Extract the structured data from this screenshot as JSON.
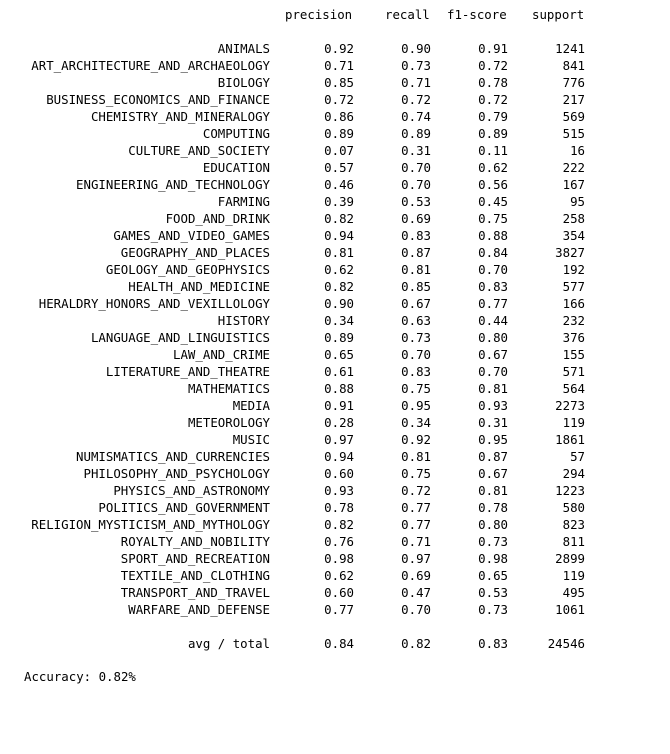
{
  "header": {
    "precision": "precision",
    "recall": "recall",
    "f1_score": "f1-score",
    "support": "support"
  },
  "rows": [
    {
      "label": "ANIMALS",
      "precision": "0.92",
      "recall": "0.90",
      "f1": "0.91",
      "support": "1241"
    },
    {
      "label": "ART_ARCHITECTURE_AND_ARCHAEOLOGY",
      "precision": "0.71",
      "recall": "0.73",
      "f1": "0.72",
      "support": "841"
    },
    {
      "label": "BIOLOGY",
      "precision": "0.85",
      "recall": "0.71",
      "f1": "0.78",
      "support": "776"
    },
    {
      "label": "BUSINESS_ECONOMICS_AND_FINANCE",
      "precision": "0.72",
      "recall": "0.72",
      "f1": "0.72",
      "support": "217"
    },
    {
      "label": "CHEMISTRY_AND_MINERALOGY",
      "precision": "0.86",
      "recall": "0.74",
      "f1": "0.79",
      "support": "569"
    },
    {
      "label": "COMPUTING",
      "precision": "0.89",
      "recall": "0.89",
      "f1": "0.89",
      "support": "515"
    },
    {
      "label": "CULTURE_AND_SOCIETY",
      "precision": "0.07",
      "recall": "0.31",
      "f1": "0.11",
      "support": "16"
    },
    {
      "label": "EDUCATION",
      "precision": "0.57",
      "recall": "0.70",
      "f1": "0.62",
      "support": "222"
    },
    {
      "label": "ENGINEERING_AND_TECHNOLOGY",
      "precision": "0.46",
      "recall": "0.70",
      "f1": "0.56",
      "support": "167"
    },
    {
      "label": "FARMING",
      "precision": "0.39",
      "recall": "0.53",
      "f1": "0.45",
      "support": "95"
    },
    {
      "label": "FOOD_AND_DRINK",
      "precision": "0.82",
      "recall": "0.69",
      "f1": "0.75",
      "support": "258"
    },
    {
      "label": "GAMES_AND_VIDEO_GAMES",
      "precision": "0.94",
      "recall": "0.83",
      "f1": "0.88",
      "support": "354"
    },
    {
      "label": "GEOGRAPHY_AND_PLACES",
      "precision": "0.81",
      "recall": "0.87",
      "f1": "0.84",
      "support": "3827"
    },
    {
      "label": "GEOLOGY_AND_GEOPHYSICS",
      "precision": "0.62",
      "recall": "0.81",
      "f1": "0.70",
      "support": "192"
    },
    {
      "label": "HEALTH_AND_MEDICINE",
      "precision": "0.82",
      "recall": "0.85",
      "f1": "0.83",
      "support": "577"
    },
    {
      "label": "HERALDRY_HONORS_AND_VEXILLOLOGY",
      "precision": "0.90",
      "recall": "0.67",
      "f1": "0.77",
      "support": "166"
    },
    {
      "label": "HISTORY",
      "precision": "0.34",
      "recall": "0.63",
      "f1": "0.44",
      "support": "232"
    },
    {
      "label": "LANGUAGE_AND_LINGUISTICS",
      "precision": "0.89",
      "recall": "0.73",
      "f1": "0.80",
      "support": "376"
    },
    {
      "label": "LAW_AND_CRIME",
      "precision": "0.65",
      "recall": "0.70",
      "f1": "0.67",
      "support": "155"
    },
    {
      "label": "LITERATURE_AND_THEATRE",
      "precision": "0.61",
      "recall": "0.83",
      "f1": "0.70",
      "support": "571"
    },
    {
      "label": "MATHEMATICS",
      "precision": "0.88",
      "recall": "0.75",
      "f1": "0.81",
      "support": "564"
    },
    {
      "label": "MEDIA",
      "precision": "0.91",
      "recall": "0.95",
      "f1": "0.93",
      "support": "2273"
    },
    {
      "label": "METEOROLOGY",
      "precision": "0.28",
      "recall": "0.34",
      "f1": "0.31",
      "support": "119"
    },
    {
      "label": "MUSIC",
      "precision": "0.97",
      "recall": "0.92",
      "f1": "0.95",
      "support": "1861"
    },
    {
      "label": "NUMISMATICS_AND_CURRENCIES",
      "precision": "0.94",
      "recall": "0.81",
      "f1": "0.87",
      "support": "57"
    },
    {
      "label": "PHILOSOPHY_AND_PSYCHOLOGY",
      "precision": "0.60",
      "recall": "0.75",
      "f1": "0.67",
      "support": "294"
    },
    {
      "label": "PHYSICS_AND_ASTRONOMY",
      "precision": "0.93",
      "recall": "0.72",
      "f1": "0.81",
      "support": "1223"
    },
    {
      "label": "POLITICS_AND_GOVERNMENT",
      "precision": "0.78",
      "recall": "0.77",
      "f1": "0.78",
      "support": "580"
    },
    {
      "label": "RELIGION_MYSTICISM_AND_MYTHOLOGY",
      "precision": "0.82",
      "recall": "0.77",
      "f1": "0.80",
      "support": "823"
    },
    {
      "label": "ROYALTY_AND_NOBILITY",
      "precision": "0.76",
      "recall": "0.71",
      "f1": "0.73",
      "support": "811"
    },
    {
      "label": "SPORT_AND_RECREATION",
      "precision": "0.98",
      "recall": "0.97",
      "f1": "0.98",
      "support": "2899"
    },
    {
      "label": "TEXTILE_AND_CLOTHING",
      "precision": "0.62",
      "recall": "0.69",
      "f1": "0.65",
      "support": "119"
    },
    {
      "label": "TRANSPORT_AND_TRAVEL",
      "precision": "0.60",
      "recall": "0.47",
      "f1": "0.53",
      "support": "495"
    },
    {
      "label": "WARFARE_AND_DEFENSE",
      "precision": "0.77",
      "recall": "0.70",
      "f1": "0.73",
      "support": "1061"
    }
  ],
  "avg": {
    "label": "avg / total",
    "precision": "0.84",
    "recall": "0.82",
    "f1": "0.83",
    "support": "24546"
  },
  "accuracy_text": "Accuracy: 0.82%"
}
